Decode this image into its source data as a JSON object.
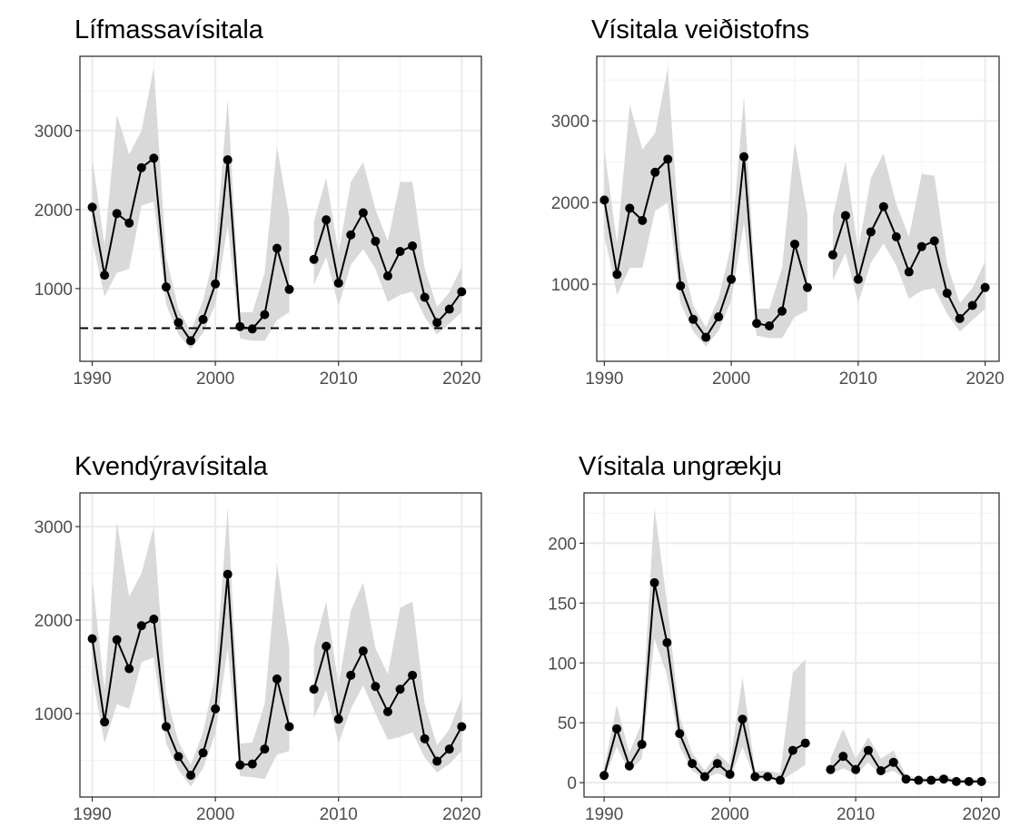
{
  "chart_data": [
    {
      "type": "line",
      "title": "Lífmassavísitala",
      "x": [
        1990,
        1991,
        1992,
        1993,
        1994,
        1995,
        1996,
        1997,
        1998,
        1999,
        2000,
        2001,
        2002,
        2003,
        2004,
        2005,
        2006,
        2007,
        2008,
        2009,
        2010,
        2011,
        2012,
        2013,
        2014,
        2015,
        2016,
        2017,
        2018,
        2019,
        2020
      ],
      "values": [
        2030,
        1170,
        1950,
        1830,
        2530,
        2650,
        1020,
        570,
        340,
        610,
        1060,
        2630,
        520,
        490,
        670,
        1510,
        990,
        null,
        1370,
        1870,
        1070,
        1680,
        1960,
        1600,
        1160,
        1470,
        1540,
        890,
        570,
        740,
        960
      ],
      "lower": [
        1600,
        900,
        1200,
        1250,
        2050,
        2100,
        800,
        420,
        230,
        440,
        800,
        1800,
        370,
        340,
        340,
        600,
        700,
        null,
        1050,
        1400,
        780,
        1300,
        1500,
        1250,
        830,
        920,
        960,
        640,
        420,
        560,
        700
      ],
      "upper": [
        2650,
        1550,
        3200,
        2700,
        3000,
        3800,
        1400,
        740,
        460,
        850,
        1480,
        3400,
        700,
        700,
        1200,
        2800,
        1900,
        null,
        1850,
        2400,
        1450,
        2350,
        2600,
        2000,
        1600,
        2350,
        2350,
        1250,
        770,
        950,
        1280
      ],
      "color": "#000000",
      "band_color": "#d9d9d9",
      "hline": 500,
      "xlim": [
        1989,
        2021.6
      ],
      "xticks": [
        1990,
        2000,
        2010,
        2020
      ],
      "minor_xticks": [
        1995,
        2005,
        2015
      ],
      "ylim": [
        80,
        3940
      ],
      "yticks": [
        1000,
        2000,
        3000
      ],
      "minor_yticks": [
        500,
        1500,
        2500,
        3500
      ],
      "grid": true
    },
    {
      "type": "line",
      "title": "Vísitala veiðistofns",
      "x": [
        1990,
        1991,
        1992,
        1993,
        1994,
        1995,
        1996,
        1997,
        1998,
        1999,
        2000,
        2001,
        2002,
        2003,
        2004,
        2005,
        2006,
        2007,
        2008,
        2009,
        2010,
        2011,
        2012,
        2013,
        2014,
        2015,
        2016,
        2017,
        2018,
        2019,
        2020
      ],
      "values": [
        2030,
        1120,
        1930,
        1780,
        2370,
        2530,
        980,
        570,
        350,
        600,
        1060,
        2560,
        520,
        490,
        670,
        1490,
        960,
        null,
        1360,
        1840,
        1060,
        1640,
        1950,
        1580,
        1150,
        1460,
        1530,
        890,
        580,
        740,
        960
      ],
      "lower": [
        1600,
        870,
        1200,
        1200,
        1900,
        2000,
        770,
        420,
        240,
        430,
        800,
        1750,
        370,
        340,
        340,
        600,
        680,
        null,
        1050,
        1380,
        770,
        1260,
        1500,
        1230,
        820,
        920,
        950,
        640,
        420,
        560,
        700
      ],
      "upper": [
        2650,
        1500,
        3200,
        2650,
        2850,
        3650,
        1380,
        740,
        470,
        830,
        1480,
        3300,
        700,
        700,
        1200,
        2750,
        1850,
        null,
        1830,
        2500,
        1420,
        2300,
        2600,
        1980,
        1580,
        2350,
        2330,
        1250,
        770,
        950,
        1280
      ],
      "color": "#000000",
      "band_color": "#d9d9d9",
      "xlim": [
        1989.4,
        2021.1
      ],
      "xticks": [
        1990,
        2000,
        2010,
        2020
      ],
      "minor_xticks": [
        1995,
        2005,
        2015
      ],
      "ylim": [
        56,
        3790
      ],
      "yticks": [
        1000,
        2000,
        3000
      ],
      "minor_yticks": [
        500,
        1500,
        2500,
        3500
      ],
      "grid": true
    },
    {
      "type": "line",
      "title": "Kvendýravísitala",
      "x": [
        1990,
        1991,
        1992,
        1993,
        1994,
        1995,
        1996,
        1997,
        1998,
        1999,
        2000,
        2001,
        2002,
        2003,
        2004,
        2005,
        2006,
        2007,
        2008,
        2009,
        2010,
        2011,
        2012,
        2013,
        2014,
        2015,
        2016,
        2017,
        2018,
        2019,
        2020
      ],
      "values": [
        1800,
        910,
        1790,
        1480,
        1940,
        2010,
        860,
        540,
        340,
        580,
        1050,
        2490,
        450,
        460,
        620,
        1370,
        860,
        null,
        1260,
        1720,
        940,
        1410,
        1670,
        1290,
        1020,
        1260,
        1410,
        730,
        490,
        620,
        860
      ],
      "lower": [
        1400,
        680,
        1100,
        1050,
        1550,
        1600,
        680,
        400,
        220,
        410,
        790,
        1700,
        330,
        320,
        300,
        560,
        600,
        null,
        950,
        1250,
        680,
        1050,
        1300,
        1000,
        720,
        750,
        800,
        530,
        370,
        460,
        600
      ],
      "upper": [
        2450,
        1250,
        3050,
        2250,
        2500,
        3000,
        1200,
        700,
        450,
        800,
        1420,
        3200,
        680,
        690,
        1100,
        2600,
        1700,
        null,
        1700,
        2200,
        1300,
        2100,
        2400,
        1700,
        1420,
        2130,
        2200,
        1100,
        660,
        830,
        1170
      ],
      "color": "#000000",
      "band_color": "#d9d9d9",
      "xlim": [
        1989,
        2021.6
      ],
      "xticks": [
        1990,
        2000,
        2010,
        2020
      ],
      "minor_xticks": [
        1995,
        2005,
        2015
      ],
      "ylim": [
        107,
        3360
      ],
      "yticks": [
        1000,
        2000,
        3000
      ],
      "minor_yticks": [
        500,
        1500,
        2500
      ],
      "grid": true
    },
    {
      "type": "line",
      "title": "Vísitala ungrækju",
      "x": [
        1990,
        1991,
        1992,
        1993,
        1994,
        1995,
        1996,
        1997,
        1998,
        1999,
        2000,
        2001,
        2002,
        2003,
        2004,
        2005,
        2006,
        2007,
        2008,
        2009,
        2010,
        2011,
        2012,
        2013,
        2014,
        2015,
        2016,
        2017,
        2018,
        2019,
        2020
      ],
      "values": [
        6,
        45,
        14,
        32,
        167,
        117,
        41,
        16,
        5,
        16,
        7,
        53,
        5,
        5,
        2,
        27,
        33,
        null,
        11,
        22,
        11,
        27,
        10,
        17,
        3,
        2,
        2,
        3,
        1,
        1,
        1
      ],
      "lower": [
        3,
        30,
        9,
        20,
        120,
        90,
        30,
        10,
        3,
        8,
        3,
        30,
        3,
        3,
        1,
        8,
        15,
        null,
        7,
        12,
        7,
        17,
        6,
        10,
        2,
        1,
        1,
        2,
        0,
        0,
        0
      ],
      "upper": [
        12,
        65,
        25,
        50,
        230,
        150,
        55,
        25,
        10,
        25,
        15,
        88,
        10,
        10,
        8,
        92,
        103,
        null,
        20,
        45,
        20,
        38,
        20,
        27,
        6,
        4,
        4,
        6,
        3,
        3,
        3
      ],
      "color": "#000000",
      "band_color": "#d9d9d9",
      "xlim": [
        1988.4,
        2021.4
      ],
      "xticks": [
        1990,
        2000,
        2010,
        2020
      ],
      "minor_xticks": [
        1995,
        2005,
        2015
      ],
      "ylim": [
        -12,
        242
      ],
      "yticks": [
        0,
        50,
        100,
        150,
        200
      ],
      "minor_yticks": [
        25,
        75,
        125,
        175,
        225
      ],
      "grid": true
    }
  ]
}
